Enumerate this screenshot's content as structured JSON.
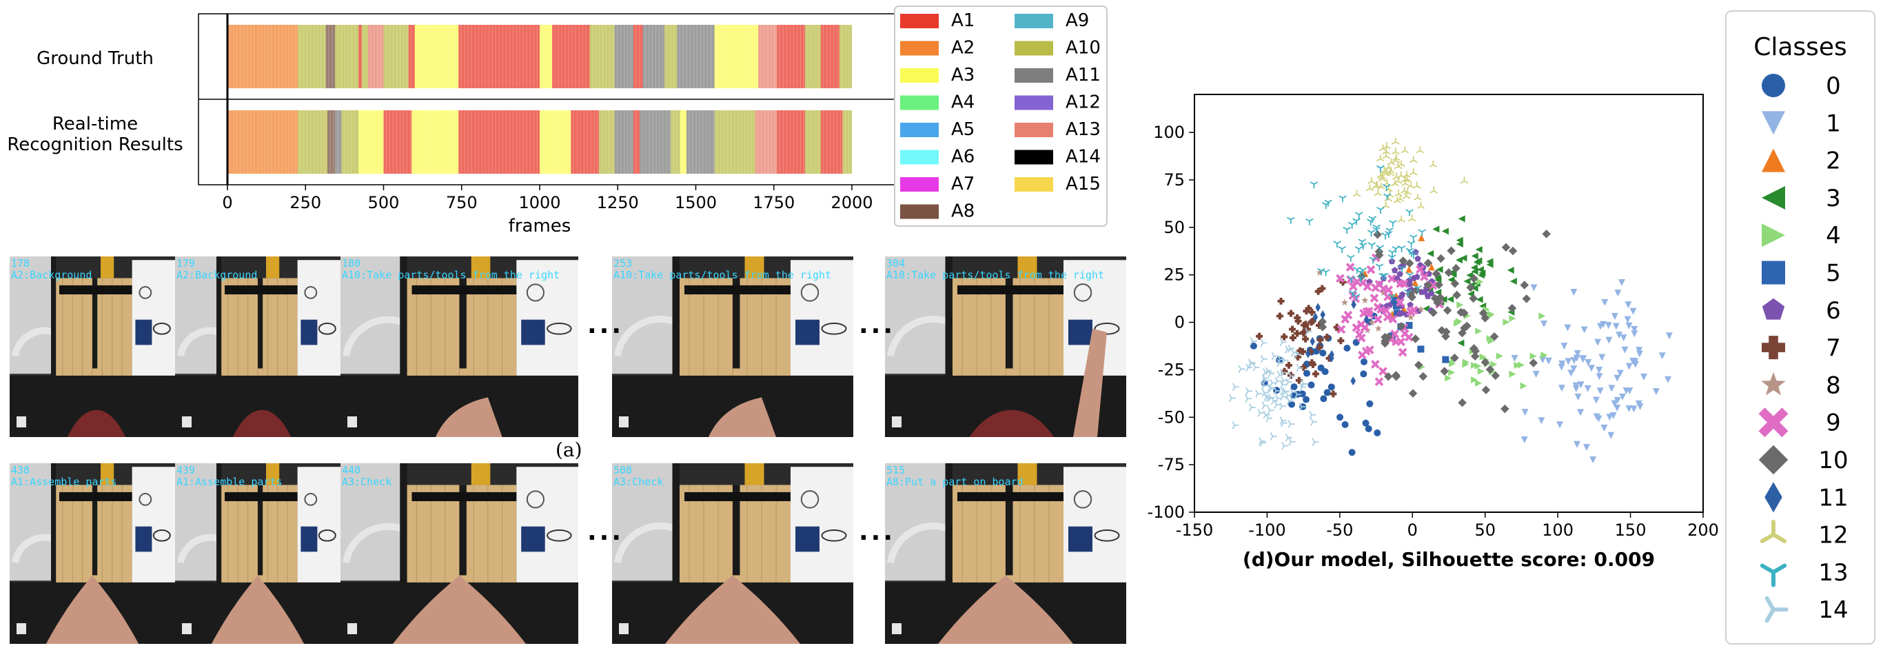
{
  "panel_a_label": "(a)",
  "chart_data": [
    {
      "type": "segmentation_bar",
      "rows": [
        {
          "label": "Ground Truth"
        },
        {
          "label": "Real-time\nRecognition Results"
        }
      ],
      "xlabel": "frames",
      "xlim": [
        0,
        2000
      ],
      "xticks": [
        0,
        250,
        500,
        750,
        1000,
        1250,
        1500,
        1750,
        2000
      ],
      "classes": [
        {
          "name": "A1",
          "color": "#e8392b"
        },
        {
          "name": "A2",
          "color": "#f28330"
        },
        {
          "name": "A3",
          "color": "#fbfb55"
        },
        {
          "name": "A4",
          "color": "#6af07f"
        },
        {
          "name": "A5",
          "color": "#4aa6ec"
        },
        {
          "name": "A6",
          "color": "#72f8fa"
        },
        {
          "name": "A7",
          "color": "#e73ae6"
        },
        {
          "name": "A8",
          "color": "#7a5343"
        },
        {
          "name": "A9",
          "color": "#51b4c9"
        },
        {
          "name": "A10",
          "color": "#b9bc47"
        },
        {
          "name": "A11",
          "color": "#7e7e7e"
        },
        {
          "name": "A12",
          "color": "#8464d2"
        },
        {
          "name": "A13",
          "color": "#e88070"
        },
        {
          "name": "A14",
          "color": "#000000"
        },
        {
          "name": "A15",
          "color": "#f6d64c"
        }
      ],
      "ground_truth": [
        [
          "A2",
          0,
          225
        ],
        [
          "A10",
          225,
          315
        ],
        [
          "A8",
          315,
          345
        ],
        [
          "A10",
          345,
          420
        ],
        [
          "A1",
          420,
          430
        ],
        [
          "A10",
          430,
          430
        ],
        [
          "A10",
          430,
          450
        ],
        [
          "A13",
          450,
          500
        ],
        [
          "A10",
          500,
          580
        ],
        [
          "A1",
          580,
          600
        ],
        [
          "A3",
          600,
          740
        ],
        [
          "A1",
          740,
          1000
        ],
        [
          "A3",
          1000,
          1040
        ],
        [
          "A1",
          1040,
          1160
        ],
        [
          "A10",
          1160,
          1240
        ],
        [
          "A11",
          1240,
          1300
        ],
        [
          "A1",
          1300,
          1330
        ],
        [
          "A11",
          1330,
          1400
        ],
        [
          "A10",
          1400,
          1440
        ],
        [
          "A11",
          1440,
          1560
        ],
        [
          "A3",
          1560,
          1700
        ],
        [
          "A13",
          1700,
          1760
        ],
        [
          "A1",
          1760,
          1850
        ],
        [
          "A10",
          1850,
          1900
        ],
        [
          "A1",
          1900,
          1960
        ],
        [
          "A10",
          1960,
          2000
        ]
      ],
      "recognition": [
        [
          "A2",
          0,
          225
        ],
        [
          "A10",
          225,
          320
        ],
        [
          "A8",
          320,
          345
        ],
        [
          "A11",
          345,
          365
        ],
        [
          "A10",
          365,
          420
        ],
        [
          "A3",
          420,
          500
        ],
        [
          "A1",
          500,
          590
        ],
        [
          "A3",
          590,
          740
        ],
        [
          "A1",
          740,
          1000
        ],
        [
          "A3",
          1000,
          1100
        ],
        [
          "A1",
          1100,
          1190
        ],
        [
          "A10",
          1190,
          1240
        ],
        [
          "A11",
          1240,
          1300
        ],
        [
          "A1",
          1300,
          1320
        ],
        [
          "A11",
          1320,
          1420
        ],
        [
          "A10",
          1420,
          1450
        ],
        [
          "A3",
          1450,
          1470
        ],
        [
          "A11",
          1470,
          1560
        ],
        [
          "A10",
          1560,
          1690
        ],
        [
          "A13",
          1690,
          1760
        ],
        [
          "A1",
          1760,
          1850
        ],
        [
          "A10",
          1850,
          1900
        ],
        [
          "A1",
          1900,
          1970
        ],
        [
          "A10",
          1970,
          2000
        ]
      ]
    },
    {
      "type": "scatter",
      "title": "(d)Our model, Silhouette score: 0.009",
      "xlim": [
        -150,
        200
      ],
      "ylim": [
        -100,
        120
      ],
      "xticks": [
        -150,
        -100,
        -50,
        0,
        50,
        100,
        150,
        200
      ],
      "yticks": [
        -100,
        -75,
        -50,
        -25,
        0,
        25,
        50,
        75,
        100
      ],
      "legend_title": "Classes",
      "legend_position": "right",
      "series": [
        {
          "name": "0",
          "marker": "circle",
          "color": "#2a5fa8",
          "cx": -60,
          "cy": -25,
          "sx": 28,
          "sy": 30,
          "n": 40
        },
        {
          "name": "1",
          "marker": "triangle_down",
          "color": "#93b4e4",
          "cx": 130,
          "cy": -25,
          "sx": 35,
          "sy": 28,
          "n": 90
        },
        {
          "name": "2",
          "marker": "triangle_up",
          "color": "#ef7b20",
          "cx": -10,
          "cy": 20,
          "sx": 25,
          "sy": 18,
          "n": 10
        },
        {
          "name": "3",
          "marker": "triangle_left",
          "color": "#2a8b2e",
          "cx": 35,
          "cy": 25,
          "sx": 20,
          "sy": 20,
          "n": 45
        },
        {
          "name": "4",
          "marker": "triangle_right",
          "color": "#8fd97a",
          "cx": 50,
          "cy": -10,
          "sx": 28,
          "sy": 22,
          "n": 40
        },
        {
          "name": "5",
          "marker": "square",
          "color": "#2e64b0",
          "cx": -10,
          "cy": 0,
          "sx": 20,
          "sy": 18,
          "n": 8
        },
        {
          "name": "6",
          "marker": "pentagon",
          "color": "#7b52b0",
          "cx": 0,
          "cy": 20,
          "sx": 15,
          "sy": 15,
          "n": 45
        },
        {
          "name": "7",
          "marker": "plus",
          "color": "#7a4335",
          "cx": -70,
          "cy": -10,
          "sx": 20,
          "sy": 18,
          "n": 45
        },
        {
          "name": "8",
          "marker": "star",
          "color": "#b89488",
          "cx": -30,
          "cy": 5,
          "sx": 20,
          "sy": 15,
          "n": 10
        },
        {
          "name": "9",
          "marker": "x",
          "color": "#e06cc4",
          "cx": -20,
          "cy": 5,
          "sx": 22,
          "sy": 20,
          "n": 60
        },
        {
          "name": "10",
          "marker": "diamond",
          "color": "#6b6b6b",
          "cx": 10,
          "cy": 5,
          "sx": 45,
          "sy": 35,
          "n": 70
        },
        {
          "name": "11",
          "marker": "thin_diamond",
          "color": "#2d5fa6",
          "cx": -60,
          "cy": -10,
          "sx": 20,
          "sy": 20,
          "n": 10
        },
        {
          "name": "12",
          "marker": "tri_down",
          "color": "#cfd07a",
          "cx": -10,
          "cy": 75,
          "sx": 15,
          "sy": 12,
          "n": 60
        },
        {
          "name": "13",
          "marker": "tri_up",
          "color": "#3cb0c4",
          "cx": -30,
          "cy": 40,
          "sx": 35,
          "sy": 25,
          "n": 60
        },
        {
          "name": "14",
          "marker": "tri_left",
          "color": "#a8cde0",
          "cx": -95,
          "cy": -35,
          "sx": 18,
          "sy": 18,
          "n": 80
        }
      ]
    }
  ],
  "video_panels": [
    {
      "frames": [
        {
          "num": "178",
          "text": "A2:Background"
        },
        {
          "num": "179",
          "text": "A2:Background"
        },
        {
          "num": "180",
          "text": "A10:Take parts/tools from the right"
        },
        {
          "num": "253",
          "text": "A10:Take parts/tools from the right"
        },
        {
          "num": "304",
          "text": "A10:Take parts/tools from the right"
        }
      ]
    },
    {
      "frames": [
        {
          "num": "438",
          "text": "A1:Assemble parts"
        },
        {
          "num": "439",
          "text": "A1:Assemble parts"
        },
        {
          "num": "440",
          "text": "A3:Check"
        },
        {
          "num": "508",
          "text": "A3:Check"
        },
        {
          "num": "515",
          "text": "A8:Put a part on board"
        }
      ]
    }
  ],
  "ellipsis": "···"
}
